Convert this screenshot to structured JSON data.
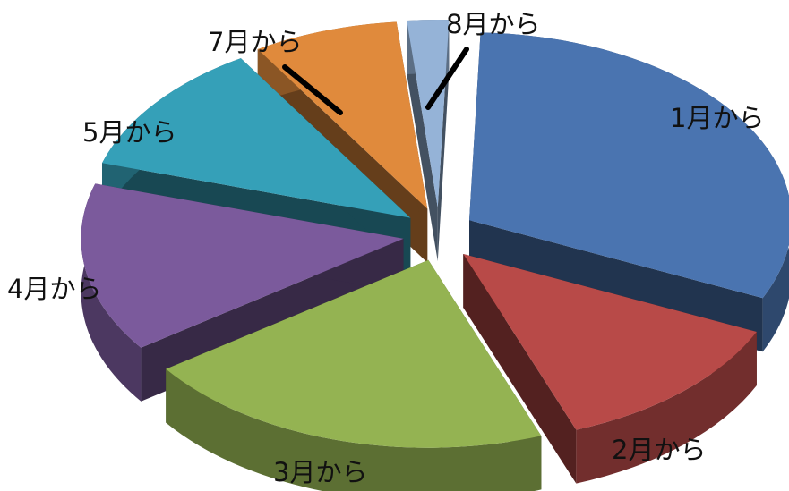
{
  "chart_data": {
    "type": "pie",
    "style": "3d-exploded",
    "title": "",
    "legend": "none",
    "slices": [
      {
        "label": "1月から",
        "value": 30.0,
        "color": "#4a74b0"
      },
      {
        "label": "2月から",
        "value": 12.0,
        "color": "#b84a48"
      },
      {
        "label": "3月から",
        "value": 20.0,
        "color": "#94b352"
      },
      {
        "label": "4月から",
        "value": 14.0,
        "color": "#7b5a9c"
      },
      {
        "label": "5月から",
        "value": 11.0,
        "color": "#35a0b8"
      },
      {
        "label": "7月から",
        "value": 7.0,
        "color": "#e08a3c"
      },
      {
        "label": "8月から",
        "value": 2.0,
        "color": "#95b3d7"
      }
    ]
  }
}
